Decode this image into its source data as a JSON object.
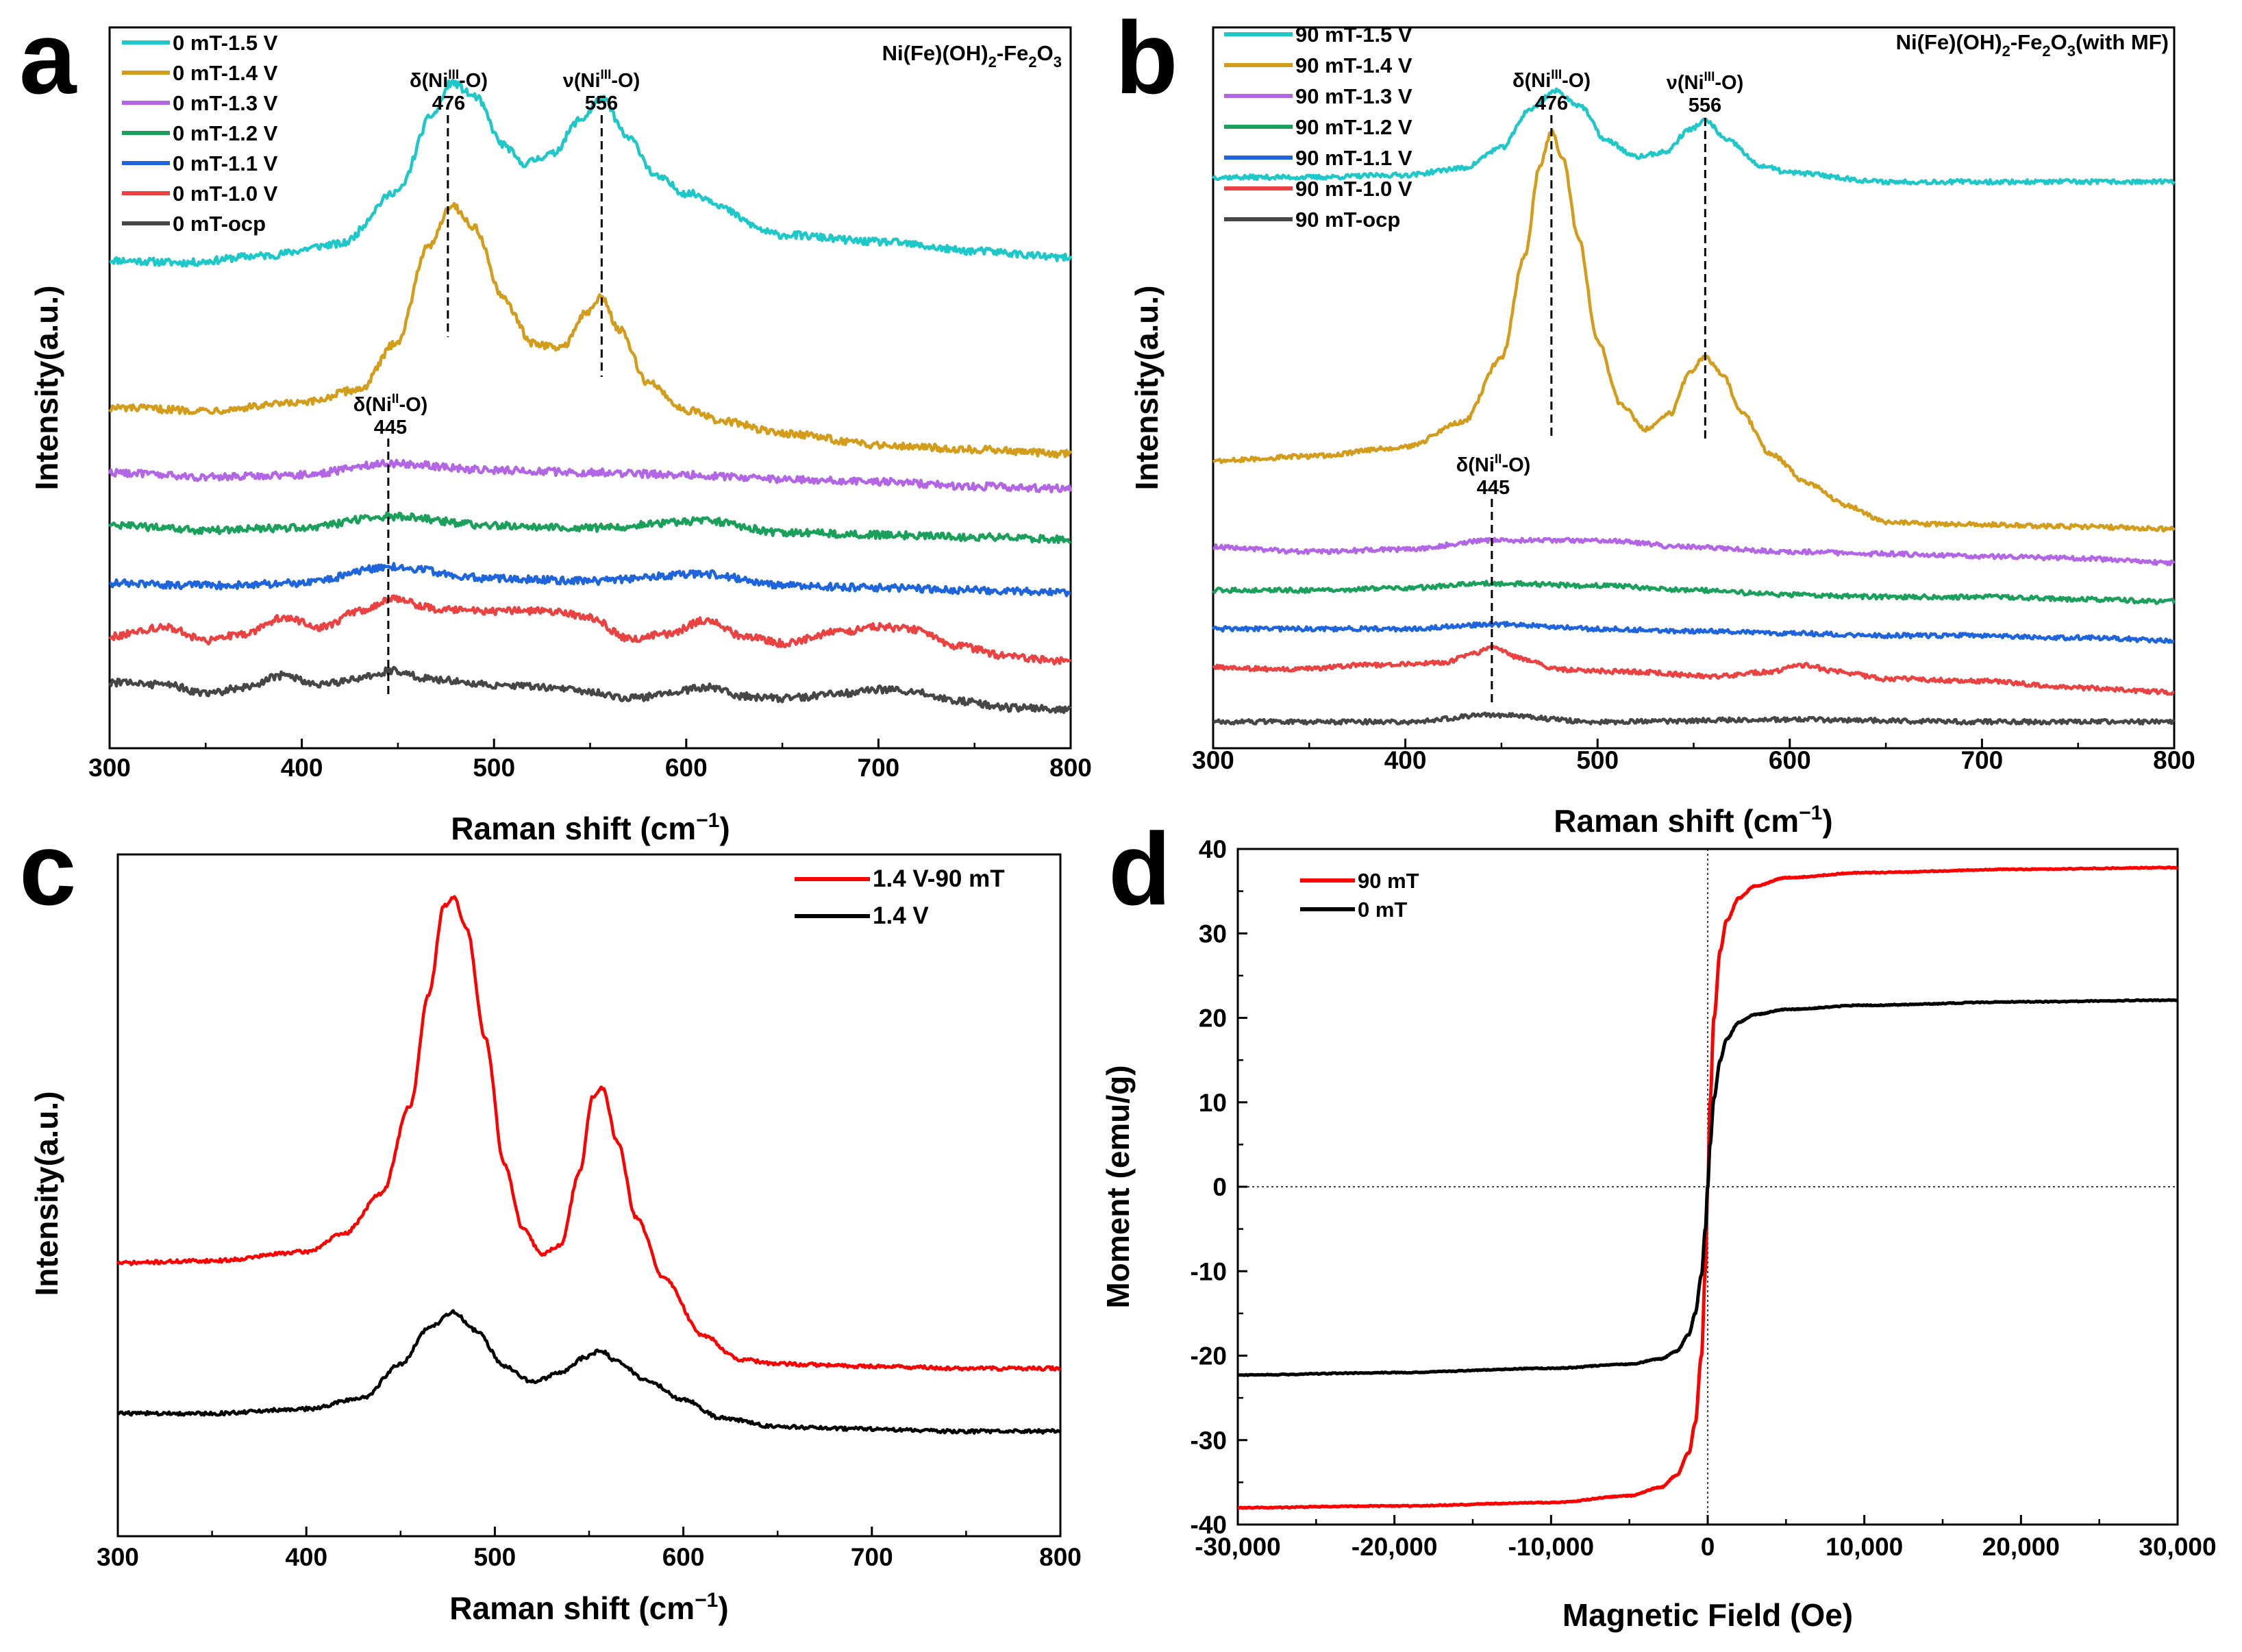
{
  "panels": {
    "a": {
      "letter": "a",
      "title_main": "Ni(Fe)(OH)",
      "title_sub1": "2",
      "title_mid": "-Fe",
      "title_sub2": "2",
      "title_tail": "O",
      "title_sub3": "3",
      "title_end": ""
    },
    "b": {
      "letter": "b",
      "title_main": "Ni(Fe)(OH)",
      "title_sub1": "2",
      "title_mid": "-Fe",
      "title_sub2": "2",
      "title_tail": "O",
      "title_sub3": "3",
      "title_end": "(with MF)"
    },
    "c": {
      "letter": "c"
    },
    "d": {
      "letter": "d"
    }
  },
  "annotations": {
    "delta_nis": "δ(Ni",
    "nu_ni": "ν(Ni",
    "sup3": "III",
    "sup2": "II",
    "o_close": "-O)",
    "peak476": "476",
    "peak556": "556",
    "peak445": "445"
  },
  "chart_data": [
    {
      "id": "a",
      "type": "line",
      "title": "Ni(Fe)(OH)2-Fe2O3",
      "xlabel": "Raman shift (cm⁻¹)",
      "ylabel": "Intensity(a.u.)",
      "xlim": [
        300,
        800
      ],
      "xticks": [
        300,
        400,
        500,
        600,
        700,
        800
      ],
      "y_ticks_shown": false,
      "legend_position": "top-left",
      "series": [
        {
          "name": "0 mT-1.5 V",
          "color": "#1ec8c8",
          "x": [
            300,
            340,
            380,
            420,
            450,
            468,
            478,
            490,
            505,
            515,
            530,
            545,
            556,
            570,
            585,
            600,
            650,
            700,
            750,
            800
          ],
          "y": [
            20.5,
            20.4,
            20.7,
            21.2,
            23.5,
            26.8,
            28.2,
            27.6,
            25.5,
            24.7,
            25.1,
            26.6,
            27.5,
            25.8,
            24.1,
            23.4,
            21.6,
            21.3,
            20.9,
            20.6
          ]
        },
        {
          "name": "0 mT-1.4 V",
          "color": "#d39c1a",
          "x": [
            300,
            350,
            400,
            430,
            450,
            465,
            478,
            490,
            505,
            520,
            535,
            548,
            556,
            565,
            580,
            600,
            620,
            650,
            700,
            750,
            800
          ],
          "y": [
            14.1,
            14.0,
            14.3,
            14.9,
            17.0,
            21.0,
            22.9,
            21.9,
            18.8,
            16.9,
            16.7,
            18.2,
            18.9,
            17.5,
            15.2,
            14.0,
            13.5,
            13.0,
            12.5,
            12.3,
            12.1
          ]
        },
        {
          "name": "0 mT-1.3 V",
          "color": "#b266e6",
          "x": [
            300,
            350,
            400,
            445,
            500,
            550,
            600,
            650,
            700,
            750,
            800
          ],
          "y": [
            11.3,
            11.1,
            11.2,
            11.7,
            11.4,
            11.3,
            11.2,
            11.0,
            10.9,
            10.7,
            10.6
          ]
        },
        {
          "name": "0 mT-1.2 V",
          "color": "#1aa05a",
          "x": [
            300,
            350,
            400,
            445,
            500,
            550,
            610,
            650,
            700,
            750,
            800
          ],
          "y": [
            9.0,
            8.8,
            8.9,
            9.4,
            9.0,
            8.9,
            9.2,
            8.7,
            8.6,
            8.5,
            8.4
          ]
        },
        {
          "name": "0 mT-1.1 V",
          "color": "#1e64dc",
          "x": [
            300,
            350,
            400,
            445,
            500,
            550,
            610,
            650,
            700,
            750,
            800
          ],
          "y": [
            6.5,
            6.4,
            6.5,
            7.2,
            6.7,
            6.6,
            6.9,
            6.4,
            6.3,
            6.2,
            6.1
          ]
        },
        {
          "name": "0 mT-1.0 V",
          "color": "#eb4141",
          "x": [
            300,
            330,
            350,
            370,
            390,
            410,
            430,
            447,
            470,
            500,
            530,
            550,
            570,
            590,
            610,
            630,
            650,
            680,
            700,
            720,
            740,
            770,
            800
          ],
          "y": [
            4.2,
            4.6,
            4.0,
            4.3,
            5.0,
            4.6,
            5.3,
            5.8,
            5.4,
            5.3,
            5.3,
            5.0,
            4.1,
            4.3,
            4.9,
            4.2,
            3.9,
            4.4,
            4.6,
            4.5,
            3.8,
            3.3,
            3.1
          ]
        },
        {
          "name": "0 mT-ocp",
          "color": "#464646",
          "x": [
            300,
            330,
            350,
            370,
            390,
            410,
            430,
            447,
            470,
            500,
            530,
            550,
            570,
            590,
            610,
            630,
            650,
            680,
            700,
            720,
            740,
            770,
            800
          ],
          "y": [
            2.2,
            2.1,
            1.7,
            2.0,
            2.5,
            2.1,
            2.4,
            2.7,
            2.3,
            2.1,
            2.0,
            1.8,
            1.5,
            1.7,
            2.0,
            1.6,
            1.5,
            1.7,
            1.9,
            1.8,
            1.4,
            1.1,
            1.0
          ]
        }
      ],
      "annotations": [
        {
          "label": "δ(NiIII-O)",
          "value": "476",
          "x": 476
        },
        {
          "label": "ν(NiIII-O)",
          "value": "556",
          "x": 556
        },
        {
          "label": "δ(NiII-O)",
          "value": "445",
          "x": 445
        }
      ]
    },
    {
      "id": "b",
      "type": "line",
      "title": "Ni(Fe)(OH)2-Fe2O3(with MF)",
      "xlabel": "Raman shift (cm⁻¹)",
      "ylabel": "Intensity(a.u.)",
      "xlim": [
        300,
        800
      ],
      "xticks": [
        300,
        400,
        500,
        600,
        700,
        800
      ],
      "y_ticks_shown": false,
      "legend_position": "top-left",
      "series": [
        {
          "name": "90 mT-1.5 V",
          "color": "#1ec8c8",
          "x": [
            300,
            350,
            400,
            430,
            450,
            465,
            478,
            490,
            505,
            520,
            535,
            548,
            556,
            568,
            585,
            600,
            650,
            700,
            750,
            800
          ],
          "y": [
            24.0,
            24.0,
            24.1,
            24.4,
            25.3,
            27.0,
            27.8,
            27.2,
            25.6,
            24.9,
            25.1,
            26.1,
            26.5,
            25.6,
            24.5,
            24.2,
            23.8,
            23.8,
            23.8,
            23.8
          ]
        },
        {
          "name": "90 mT-1.4 V",
          "color": "#d39c1a",
          "x": [
            300,
            350,
            400,
            430,
            450,
            462,
            470,
            476,
            482,
            490,
            500,
            512,
            525,
            538,
            548,
            556,
            565,
            575,
            590,
            610,
            630,
            650,
            680,
            700,
            750,
            800
          ],
          "y": [
            11.5,
            11.7,
            12.1,
            13.2,
            16.0,
            20.5,
            24.5,
            26.0,
            24.8,
            21.3,
            16.8,
            14.0,
            12.9,
            13.6,
            15.4,
            16.1,
            15.3,
            13.6,
            11.8,
            10.5,
            9.5,
            8.8,
            8.7,
            8.7,
            8.6,
            8.5
          ]
        },
        {
          "name": "90 mT-1.3 V",
          "color": "#b266e6",
          "x": [
            300,
            350,
            400,
            445,
            500,
            550,
            600,
            650,
            700,
            750,
            800
          ],
          "y": [
            7.7,
            7.5,
            7.6,
            8.0,
            8.0,
            7.7,
            7.5,
            7.4,
            7.3,
            7.2,
            7.0
          ]
        },
        {
          "name": "90 mT-1.2 V",
          "color": "#1aa05a",
          "x": [
            300,
            350,
            400,
            445,
            500,
            550,
            600,
            650,
            700,
            750,
            800
          ],
          "y": [
            5.8,
            5.8,
            5.9,
            6.1,
            6.0,
            5.8,
            5.6,
            5.5,
            5.5,
            5.4,
            5.3
          ]
        },
        {
          "name": "90 mT-1.1 V",
          "color": "#1e64dc",
          "x": [
            300,
            350,
            400,
            445,
            500,
            550,
            600,
            650,
            700,
            750,
            800
          ],
          "y": [
            4.1,
            4.1,
            4.1,
            4.3,
            4.1,
            4.0,
            3.9,
            3.8,
            3.8,
            3.7,
            3.6
          ]
        },
        {
          "name": "90 mT-1.0 V",
          "color": "#eb4141",
          "x": [
            300,
            340,
            380,
            420,
            435,
            445,
            460,
            480,
            520,
            560,
            590,
            607,
            625,
            650,
            700,
            750,
            800
          ],
          "y": [
            2.4,
            2.3,
            2.5,
            2.6,
            3.0,
            3.3,
            2.8,
            2.3,
            2.2,
            2.0,
            2.2,
            2.5,
            2.2,
            1.9,
            1.8,
            1.5,
            1.3
          ]
        },
        {
          "name": "90 mT-ocp",
          "color": "#464646",
          "x": [
            300,
            400,
            445,
            500,
            600,
            700,
            800
          ],
          "y": [
            0.0,
            0.0,
            0.3,
            0.0,
            0.1,
            0.0,
            0.0
          ]
        }
      ],
      "annotations": [
        {
          "label": "δ(NiIII-O)",
          "value": "476",
          "x": 476
        },
        {
          "label": "ν(NiIII-O)",
          "value": "556",
          "x": 556
        },
        {
          "label": "δ(NiII-O)",
          "value": "445",
          "x": 445
        }
      ]
    },
    {
      "id": "c",
      "type": "line",
      "xlabel": "Raman shift (cm⁻¹)",
      "ylabel": "Intensity(a.u.)",
      "xlim": [
        300,
        800
      ],
      "xticks": [
        300,
        400,
        500,
        600,
        700,
        800
      ],
      "y_ticks_shown": false,
      "legend_position": "top-right",
      "series": [
        {
          "name": "1.4 V-90 mT",
          "color": "#ff0000",
          "x": [
            300,
            350,
            400,
            420,
            440,
            455,
            465,
            473,
            478,
            485,
            495,
            505,
            515,
            525,
            535,
            545,
            552,
            557,
            565,
            575,
            590,
            610,
            630,
            650,
            700,
            750,
            800
          ],
          "y": [
            14.5,
            14.6,
            15.0,
            15.8,
            17.6,
            21.5,
            26.5,
            30.4,
            30.8,
            29.4,
            24.5,
            18.9,
            16.0,
            14.9,
            15.3,
            18.6,
            21.9,
            22.3,
            19.9,
            16.5,
            13.8,
            11.3,
            10.2,
            10.0,
            9.9,
            9.8,
            9.8
          ]
        },
        {
          "name": "1.4 V",
          "color": "#000000",
          "x": [
            300,
            350,
            400,
            430,
            450,
            465,
            478,
            490,
            505,
            520,
            535,
            548,
            556,
            565,
            580,
            600,
            620,
            650,
            700,
            750,
            800
          ],
          "y": [
            7.8,
            7.8,
            8.0,
            8.5,
            10.0,
            11.6,
            12.3,
            11.5,
            9.9,
            9.2,
            9.6,
            10.3,
            10.6,
            10.1,
            9.3,
            8.4,
            7.6,
            7.2,
            7.1,
            7.0,
            7.0
          ]
        }
      ]
    },
    {
      "id": "d",
      "type": "line",
      "xlabel": "Magnetic Field (Oe)",
      "ylabel": "Moment (emu/g)",
      "xlim": [
        -30000,
        30000
      ],
      "ylim": [
        -40,
        40
      ],
      "xticks": [
        -30000,
        -20000,
        -10000,
        0,
        10000,
        20000,
        30000
      ],
      "xtick_labels": [
        "-30,000",
        "-20,000",
        "-10,000",
        "0",
        "10,000",
        "20,000",
        "30,000"
      ],
      "yticks": [
        -40,
        -30,
        -20,
        -10,
        0,
        10,
        20,
        30,
        40
      ],
      "ytick_labels": [
        "-40",
        "-30",
        "-20",
        "-10",
        "0",
        "10",
        "20",
        "30",
        "40"
      ],
      "zero_lines": true,
      "legend_position": "top-left",
      "series": [
        {
          "name": "90 mT",
          "color": "#ff0000",
          "x": [
            -30000,
            -20000,
            -10000,
            -5000,
            -3000,
            -2000,
            -1200,
            -800,
            -400,
            -150,
            0,
            150,
            400,
            800,
            1200,
            2000,
            3000,
            5000,
            10000,
            20000,
            30000
          ],
          "y": [
            -38.0,
            -37.8,
            -37.4,
            -36.6,
            -35.6,
            -34.2,
            -31.5,
            -28.0,
            -20.0,
            -10.0,
            0,
            10.0,
            20.0,
            28.0,
            31.5,
            34.2,
            35.6,
            36.6,
            37.2,
            37.6,
            37.8
          ]
        },
        {
          "name": "0 mT",
          "color": "#000000",
          "x": [
            -30000,
            -20000,
            -10000,
            -5000,
            -3000,
            -2000,
            -1200,
            -800,
            -400,
            -150,
            0,
            150,
            400,
            800,
            1200,
            2000,
            3000,
            5000,
            10000,
            20000,
            30000
          ],
          "y": [
            -22.3,
            -22.0,
            -21.5,
            -21.0,
            -20.4,
            -19.5,
            -17.5,
            -15.0,
            -10.5,
            -5.0,
            0,
            5.0,
            10.5,
            15.0,
            17.5,
            19.5,
            20.4,
            21.0,
            21.5,
            21.9,
            22.1
          ]
        }
      ]
    }
  ]
}
